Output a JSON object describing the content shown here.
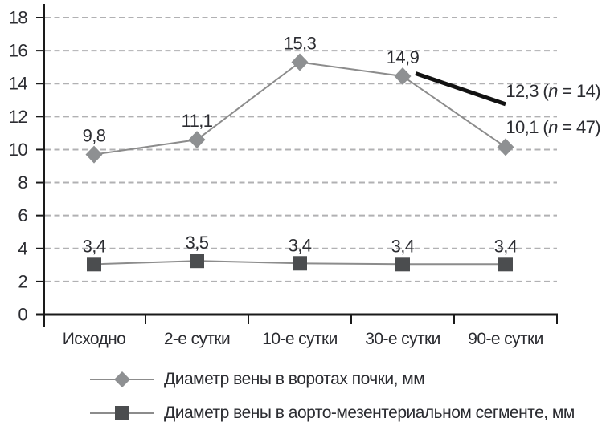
{
  "chart_data": {
    "type": "line",
    "title": "",
    "xlabel": "",
    "ylabel": "",
    "categories": [
      "Исходно",
      "2-е сутки",
      "10-е сутки",
      "30-е сутки",
      "90-е сутки"
    ],
    "ylim": [
      0,
      18
    ],
    "ytick_step": 2,
    "ytick_labels": [
      "0",
      "2",
      "4",
      "6",
      "8",
      "10",
      "12",
      "14",
      "16",
      "18"
    ],
    "grid": "horizontal-dashed",
    "legend_position": "bottom-left",
    "series": [
      {
        "name": "Диаметр вены в воротах почки, мм",
        "marker": "diamond",
        "values": [
          9.8,
          11.1,
          15.3,
          14.9,
          10.1
        ],
        "point_labels": [
          "9,8",
          "11,1",
          "15,3",
          "14,9",
          ""
        ],
        "plotted_values": [
          9.7,
          10.6,
          15.3,
          14.45,
          10.15
        ]
      },
      {
        "name": "Диаметр вены в аорто-мезентериальном сегменте, мм",
        "marker": "square",
        "values": [
          3.4,
          3.5,
          3.4,
          3.4,
          3.4
        ],
        "point_labels": [
          "3,4",
          "3,5",
          "3,4",
          "3,4",
          "3,4"
        ],
        "plotted_values": [
          3.05,
          3.25,
          3.1,
          3.05,
          3.05
        ]
      }
    ],
    "annotations": [
      {
        "full": "12,3 (n = 14)",
        "prefix": "12,3 (",
        "italic": "n",
        "suffix": " = 14)"
      },
      {
        "full": "10,1 (n = 47)",
        "prefix": "10,1 (",
        "italic": "n",
        "suffix": " = 47)"
      }
    ],
    "annotation_line": {
      "from_value": 14.62,
      "to_value": 12.75,
      "width": 5
    }
  },
  "colors": {
    "background": "#ffffff",
    "text": "#2b2c31",
    "axis": "#1a1a1a",
    "grid": "#b1b1b3",
    "series_line": "#8c8c8c",
    "diamond_marker": "#8e9092",
    "square_marker": "#4b4d4f",
    "annotation_line": "#121212"
  }
}
